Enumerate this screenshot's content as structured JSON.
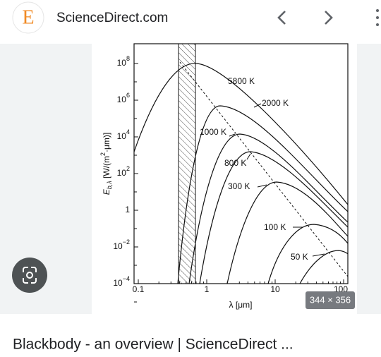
{
  "header": {
    "logo": "E",
    "site": "ScienceDirect.com"
  },
  "figure": {
    "y_axis_label": {
      "symbol": "E",
      "subscript": "b,λ",
      "unit_start": " [W/(m",
      "unit_power": "2",
      "unit_end": "·μm)]"
    },
    "x_axis_label": "λ [μm]",
    "y_tick_labels": [
      {
        "base": "10",
        "exp": "8"
      },
      {
        "base": "10",
        "exp": "6"
      },
      {
        "base": "10",
        "exp": "4"
      },
      {
        "base": "10",
        "exp": "2"
      },
      {
        "base": "1"
      },
      {
        "base": "10",
        "exp": "−2"
      },
      {
        "base": "10",
        "exp": "−4"
      }
    ],
    "x_tick_labels": [
      "0.1",
      "1",
      "10",
      "100"
    ],
    "curve_labels": [
      "5800 K",
      "2000 K",
      "1000 K",
      "800 K",
      "300 K",
      "100 K",
      "50 K"
    ],
    "size_badge": "344 × 356"
  },
  "caption": "Blackbody - an overview | ScienceDirect ..."
}
